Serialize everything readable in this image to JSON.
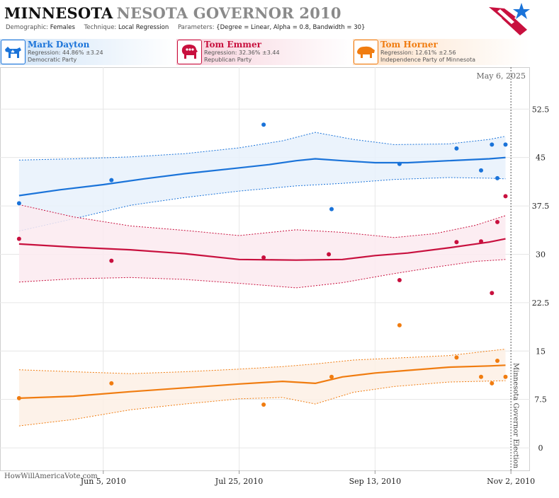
{
  "header": {
    "title_main": "MINNESOTA",
    "title_sub": "NESOTA GOVERNOR 2010",
    "params": [
      {
        "key": "Demographic:",
        "value": "Females"
      },
      {
        "key": "Technique:",
        "value": "Local Regression"
      },
      {
        "key": "Parameters:",
        "value": "{Degree = Linear, Alpha = 0.8, Bandwidth = 30}"
      }
    ]
  },
  "candidates": [
    {
      "name": "Mark Dayton",
      "regression": "Regression: 44.86% ±3.24",
      "party": "Democratic Party",
      "color": "#1a73d9",
      "icon": "donkey-icon"
    },
    {
      "name": "Tom Emmer",
      "regression": "Regression: 32.36% ±3.44",
      "party": "Republican Party",
      "color": "#c8103e",
      "icon": "elephant-icon"
    },
    {
      "name": "Tom Horner",
      "regression": "Regression: 12.61% ±2.56",
      "party": "Independence Party  of Minnesota",
      "color": "#f07c10",
      "icon": "buffalo-icon"
    }
  ],
  "watermark": "HowWillAmericaVote.com",
  "chart_data": {
    "type": "line",
    "date_label": "May 6, 2025",
    "event_label": "Minnesota Governor Election",
    "event_x": "2010-11-02",
    "xlim": [
      "2010-04-28",
      "2010-11-09"
    ],
    "ylim": [
      -3.5,
      59
    ],
    "x_ticks": [
      {
        "x": "2010-06-05",
        "label": "Jun 5, 2010"
      },
      {
        "x": "2010-07-25",
        "label": "Jul 25, 2010"
      },
      {
        "x": "2010-09-13",
        "label": "Sep 13, 2010"
      },
      {
        "x": "2010-11-02",
        "label": "Nov 2, 2010"
      }
    ],
    "y_ticks": [
      {
        "y": 0,
        "label": "0"
      },
      {
        "y": 7.5,
        "label": "7.5"
      },
      {
        "y": 15,
        "label": "15"
      },
      {
        "y": 22.5,
        "label": "22.5"
      },
      {
        "y": 30,
        "label": "30"
      },
      {
        "y": 37.5,
        "label": "37.5"
      },
      {
        "y": 45,
        "label": "45"
      },
      {
        "y": 52.5,
        "label": "52.5"
      }
    ],
    "grid": true,
    "series": [
      {
        "name": "Mark Dayton",
        "color": "#1a73d9",
        "fill": "#e8f1fb",
        "trend": [
          [
            "2010-05-05",
            39.1
          ],
          [
            "2010-05-20",
            40.0
          ],
          [
            "2010-06-05",
            40.8
          ],
          [
            "2010-06-20",
            41.7
          ],
          [
            "2010-07-05",
            42.5
          ],
          [
            "2010-07-25",
            43.4
          ],
          [
            "2010-08-05",
            43.9
          ],
          [
            "2010-08-15",
            44.5
          ],
          [
            "2010-08-22",
            44.8
          ],
          [
            "2010-09-01",
            44.5
          ],
          [
            "2010-09-13",
            44.2
          ],
          [
            "2010-09-25",
            44.2
          ],
          [
            "2010-10-10",
            44.5
          ],
          [
            "2010-10-25",
            44.8
          ],
          [
            "2010-10-31",
            45.0
          ]
        ],
        "upper": [
          [
            "2010-05-05",
            44.6
          ],
          [
            "2010-05-25",
            44.8
          ],
          [
            "2010-06-15",
            45.1
          ],
          [
            "2010-07-05",
            45.6
          ],
          [
            "2010-07-25",
            46.5
          ],
          [
            "2010-08-10",
            47.6
          ],
          [
            "2010-08-22",
            48.9
          ],
          [
            "2010-09-05",
            47.8
          ],
          [
            "2010-09-20",
            47.0
          ],
          [
            "2010-10-10",
            47.1
          ],
          [
            "2010-10-25",
            47.8
          ],
          [
            "2010-10-31",
            48.3
          ]
        ],
        "lower": [
          [
            "2010-05-05",
            33.6
          ],
          [
            "2010-05-25",
            35.5
          ],
          [
            "2010-06-15",
            37.6
          ],
          [
            "2010-07-05",
            38.8
          ],
          [
            "2010-07-25",
            39.8
          ],
          [
            "2010-08-15",
            40.6
          ],
          [
            "2010-09-01",
            41.0
          ],
          [
            "2010-09-20",
            41.6
          ],
          [
            "2010-10-10",
            41.9
          ],
          [
            "2010-10-25",
            41.8
          ],
          [
            "2010-10-31",
            41.7
          ]
        ],
        "points": [
          [
            "2010-05-05",
            37.9
          ],
          [
            "2010-06-08",
            41.5
          ],
          [
            "2010-08-03",
            50.1
          ],
          [
            "2010-08-28",
            37.0
          ],
          [
            "2010-09-22",
            44.0
          ],
          [
            "2010-10-13",
            46.4
          ],
          [
            "2010-10-22",
            43.0
          ],
          [
            "2010-10-26",
            47.0
          ],
          [
            "2010-10-28",
            41.8
          ],
          [
            "2010-10-31",
            47.0
          ]
        ]
      },
      {
        "name": "Tom Emmer",
        "color": "#c8103e",
        "fill": "#fbeaf0",
        "trend": [
          [
            "2010-05-05",
            31.6
          ],
          [
            "2010-05-25",
            31.1
          ],
          [
            "2010-06-15",
            30.7
          ],
          [
            "2010-07-05",
            30.1
          ],
          [
            "2010-07-25",
            29.2
          ],
          [
            "2010-08-15",
            29.1
          ],
          [
            "2010-09-01",
            29.2
          ],
          [
            "2010-09-13",
            29.8
          ],
          [
            "2010-09-25",
            30.2
          ],
          [
            "2010-10-10",
            31.0
          ],
          [
            "2010-10-25",
            31.9
          ],
          [
            "2010-10-31",
            32.4
          ]
        ],
        "upper": [
          [
            "2010-05-05",
            37.7
          ],
          [
            "2010-05-25",
            35.8
          ],
          [
            "2010-06-15",
            34.4
          ],
          [
            "2010-07-05",
            33.7
          ],
          [
            "2010-07-25",
            32.9
          ],
          [
            "2010-08-15",
            33.8
          ],
          [
            "2010-09-01",
            33.4
          ],
          [
            "2010-09-20",
            32.6
          ],
          [
            "2010-10-05",
            33.2
          ],
          [
            "2010-10-20",
            34.5
          ],
          [
            "2010-10-31",
            36.0
          ]
        ],
        "lower": [
          [
            "2010-05-05",
            25.7
          ],
          [
            "2010-05-25",
            26.2
          ],
          [
            "2010-06-15",
            26.4
          ],
          [
            "2010-07-05",
            26.1
          ],
          [
            "2010-07-25",
            25.5
          ],
          [
            "2010-08-15",
            24.8
          ],
          [
            "2010-09-01",
            25.6
          ],
          [
            "2010-09-20",
            27.0
          ],
          [
            "2010-10-05",
            28.0
          ],
          [
            "2010-10-20",
            28.9
          ],
          [
            "2010-10-31",
            29.2
          ]
        ],
        "points": [
          [
            "2010-05-05",
            32.4
          ],
          [
            "2010-06-08",
            29.0
          ],
          [
            "2010-08-03",
            29.5
          ],
          [
            "2010-08-27",
            30.0
          ],
          [
            "2010-09-22",
            26.0
          ],
          [
            "2010-10-13",
            31.9
          ],
          [
            "2010-10-22",
            32.0
          ],
          [
            "2010-10-26",
            24.0
          ],
          [
            "2010-10-28",
            35.0
          ],
          [
            "2010-10-31",
            39.0
          ]
        ]
      },
      {
        "name": "Tom Horner",
        "color": "#f07c10",
        "fill": "#fdf0e5",
        "trend": [
          [
            "2010-05-05",
            7.7
          ],
          [
            "2010-05-25",
            8.0
          ],
          [
            "2010-06-15",
            8.7
          ],
          [
            "2010-07-05",
            9.3
          ],
          [
            "2010-07-25",
            9.9
          ],
          [
            "2010-08-10",
            10.3
          ],
          [
            "2010-08-22",
            10.0
          ],
          [
            "2010-09-01",
            11.0
          ],
          [
            "2010-09-13",
            11.6
          ],
          [
            "2010-09-25",
            12.0
          ],
          [
            "2010-10-10",
            12.5
          ],
          [
            "2010-10-25",
            12.7
          ],
          [
            "2010-10-31",
            12.8
          ]
        ],
        "upper": [
          [
            "2010-05-05",
            12.1
          ],
          [
            "2010-05-25",
            11.8
          ],
          [
            "2010-06-15",
            11.5
          ],
          [
            "2010-07-05",
            11.8
          ],
          [
            "2010-07-25",
            12.2
          ],
          [
            "2010-08-10",
            12.6
          ],
          [
            "2010-08-22",
            13.0
          ],
          [
            "2010-09-05",
            13.6
          ],
          [
            "2010-09-20",
            13.9
          ],
          [
            "2010-10-10",
            14.3
          ],
          [
            "2010-10-31",
            15.3
          ]
        ],
        "lower": [
          [
            "2010-05-05",
            3.4
          ],
          [
            "2010-05-25",
            4.4
          ],
          [
            "2010-06-15",
            5.9
          ],
          [
            "2010-07-05",
            6.8
          ],
          [
            "2010-07-25",
            7.6
          ],
          [
            "2010-08-10",
            7.8
          ],
          [
            "2010-08-22",
            6.8
          ],
          [
            "2010-09-05",
            8.6
          ],
          [
            "2010-09-20",
            9.5
          ],
          [
            "2010-10-10",
            10.2
          ],
          [
            "2010-10-31",
            10.4
          ]
        ],
        "points": [
          [
            "2010-05-05",
            7.7
          ],
          [
            "2010-06-08",
            10.0
          ],
          [
            "2010-08-03",
            6.7
          ],
          [
            "2010-08-28",
            11.0
          ],
          [
            "2010-09-22",
            19.0
          ],
          [
            "2010-10-13",
            14.0
          ],
          [
            "2010-10-22",
            11.0
          ],
          [
            "2010-10-26",
            10.0
          ],
          [
            "2010-10-28",
            13.5
          ],
          [
            "2010-10-31",
            11.0
          ]
        ]
      }
    ]
  }
}
